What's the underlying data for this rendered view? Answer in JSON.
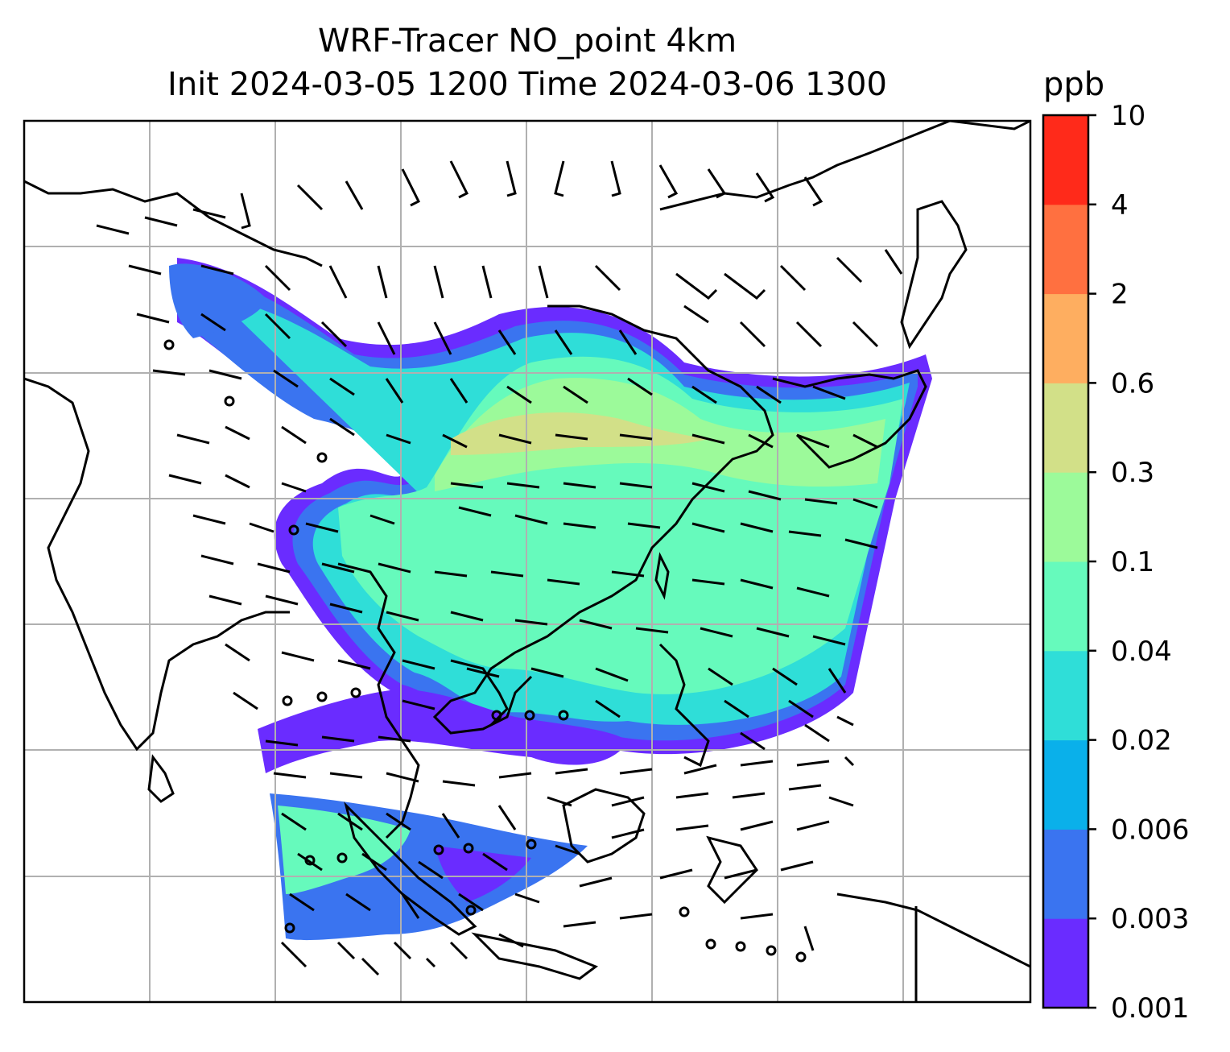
{
  "title": {
    "line1": "WRF-Tracer NO_point 4km",
    "line2": "Init 2024-03-05 1200 Time 2024-03-06 1300"
  },
  "colorbar": {
    "unit": "ppb",
    "levels": [
      "0.001",
      "0.003",
      "0.006",
      "0.02",
      "0.04",
      "0.1",
      "0.3",
      "0.6",
      "2",
      "4",
      "10"
    ],
    "colors": [
      "#6a2cff",
      "#3a74f0",
      "#0ab0ea",
      "#2fded8",
      "#66fabc",
      "#9cfa9a",
      "#d2e088",
      "#feae60",
      "#ff7040",
      "#ff2a1a"
    ]
  },
  "map": {
    "coastline_color": "#000000",
    "gridline_color": "#b0b0b0",
    "background": "#ffffff"
  }
}
